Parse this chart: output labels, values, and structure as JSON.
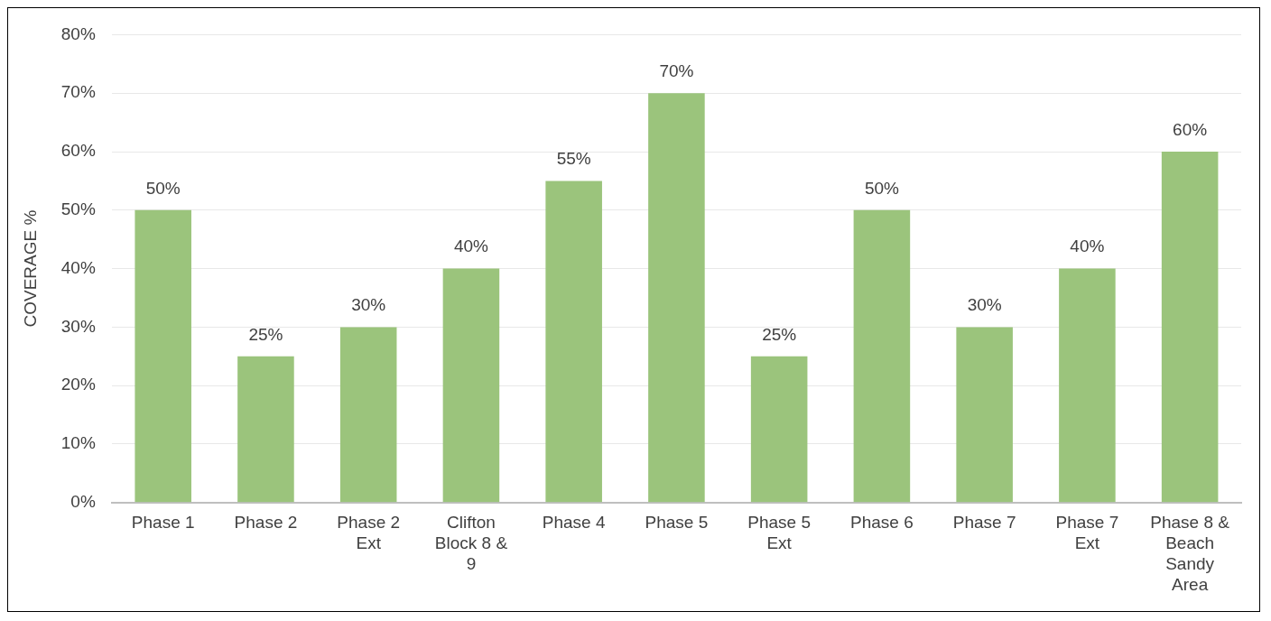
{
  "chart_data": {
    "type": "bar",
    "categories": [
      "Phase 1",
      "Phase 2",
      "Phase 2 Ext",
      "Clifton Block 8 & 9",
      "Phase 4",
      "Phase 5",
      "Phase 5 Ext",
      "Phase 6",
      "Phase 7",
      "Phase 7 Ext",
      "Phase 8 & Beach Sandy Area"
    ],
    "values": [
      50,
      25,
      30,
      40,
      55,
      70,
      25,
      50,
      30,
      40,
      60
    ],
    "value_labels": [
      "50%",
      "25%",
      "30%",
      "40%",
      "55%",
      "70%",
      "25%",
      "50%",
      "30%",
      "40%",
      "60%"
    ],
    "color": "#9bc47c",
    "ylabel": "COVERAGE %",
    "ylim": [
      0,
      80
    ],
    "yticks": [
      {
        "value": 0,
        "label": "0%"
      },
      {
        "value": 10,
        "label": "10%"
      },
      {
        "value": 20,
        "label": "20%"
      },
      {
        "value": 30,
        "label": "30%"
      },
      {
        "value": 40,
        "label": "40%"
      },
      {
        "value": 50,
        "label": "50%"
      },
      {
        "value": 60,
        "label": "60%"
      },
      {
        "value": 70,
        "label": "70%"
      },
      {
        "value": 80,
        "label": "80%"
      }
    ],
    "grid": "y",
    "legend": false
  }
}
